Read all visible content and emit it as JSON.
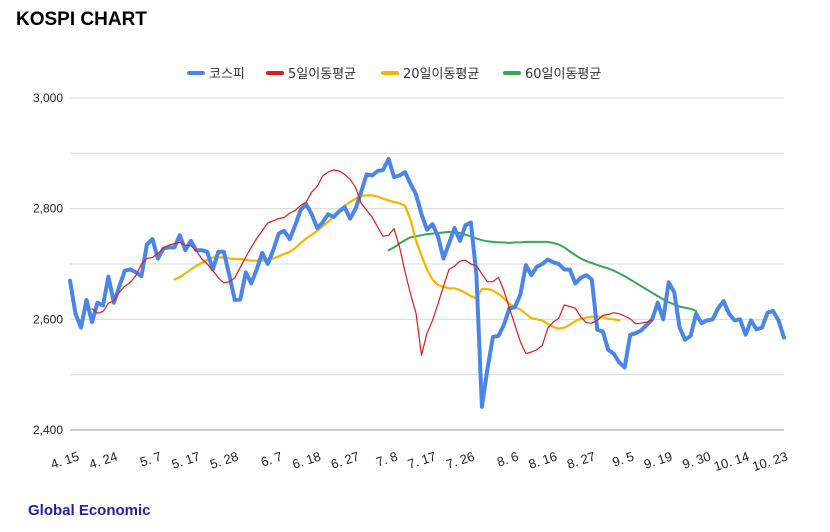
{
  "title": "KOSPI CHART",
  "footer": "Global Economic",
  "colors": {
    "kospi": "#4a86e8",
    "ma5": "#e01b1b",
    "ma20": "#f4b400",
    "ma60": "#34a853",
    "grid": "#d9d9d9"
  },
  "chart_data": {
    "type": "line",
    "title": "",
    "xlabel": "",
    "ylabel": "",
    "ylim": [
      2400,
      3000
    ],
    "yticks": [
      2400,
      2600,
      2800,
      3000
    ],
    "ytick_labels": [
      "2,400",
      "2,600",
      "2,800",
      "3,000"
    ],
    "grid": "horizontal",
    "legend_position": "top",
    "x_tick_labels": [
      {
        "i": 0,
        "label": "4. 15"
      },
      {
        "i": 7,
        "label": "4. 24"
      },
      {
        "i": 15,
        "label": "5. 7"
      },
      {
        "i": 22,
        "label": "5. 17"
      },
      {
        "i": 29,
        "label": "5. 28"
      },
      {
        "i": 37,
        "label": "6. 7"
      },
      {
        "i": 44,
        "label": "6. 18"
      },
      {
        "i": 51,
        "label": "6. 27"
      },
      {
        "i": 58,
        "label": "7. 8"
      },
      {
        "i": 65,
        "label": "7. 17"
      },
      {
        "i": 72,
        "label": "7. 26"
      },
      {
        "i": 80,
        "label": "8. 6"
      },
      {
        "i": 87,
        "label": "8. 16"
      },
      {
        "i": 94,
        "label": "8. 27"
      },
      {
        "i": 101,
        "label": "9. 5"
      },
      {
        "i": 108,
        "label": "9. 19"
      },
      {
        "i": 115,
        "label": "9. 30"
      },
      {
        "i": 122,
        "label": "10. 14"
      },
      {
        "i": 129,
        "label": "10. 23"
      }
    ],
    "series": [
      {
        "name": "코스피",
        "start": 0,
        "values": [
          2670,
          2610,
          2585,
          2635,
          2595,
          2630,
          2625,
          2677,
          2630,
          2660,
          2688,
          2690,
          2685,
          2678,
          2735,
          2745,
          2710,
          2728,
          2730,
          2730,
          2752,
          2725,
          2742,
          2725,
          2725,
          2722,
          2690,
          2722,
          2722,
          2680,
          2635,
          2636,
          2685,
          2665,
          2690,
          2720,
          2700,
          2725,
          2755,
          2760,
          2745,
          2770,
          2798,
          2808,
          2790,
          2765,
          2775,
          2790,
          2785,
          2795,
          2803,
          2782,
          2800,
          2830,
          2862,
          2860,
          2868,
          2870,
          2890,
          2857,
          2860,
          2866,
          2845,
          2826,
          2790,
          2762,
          2772,
          2750,
          2710,
          2737,
          2765,
          2742,
          2770,
          2775,
          2680,
          2442,
          2510,
          2568,
          2570,
          2590,
          2620,
          2622,
          2645,
          2698,
          2680,
          2695,
          2700,
          2708,
          2703,
          2700,
          2690,
          2690,
          2665,
          2675,
          2680,
          2672,
          2581,
          2578,
          2545,
          2538,
          2522,
          2513,
          2572,
          2575,
          2580,
          2590,
          2600,
          2630,
          2600,
          2667,
          2649,
          2585,
          2563,
          2570,
          2610,
          2593,
          2598,
          2600,
          2620,
          2633,
          2610,
          2598,
          2600,
          2572,
          2598,
          2582,
          2585,
          2612,
          2615,
          2598,
          2567
        ]
      },
      {
        "name": "5일이동평균",
        "start": 4,
        "values": [
          2619,
          2611,
          2614,
          2629,
          2634,
          2649,
          2660,
          2667,
          2679,
          2700,
          2710,
          2712,
          2719,
          2729,
          2734,
          2737,
          2739,
          2734,
          2733,
          2724,
          2709,
          2700,
          2688,
          2675,
          2666,
          2668,
          2675,
          2694,
          2713,
          2730,
          2746,
          2760,
          2774,
          2778,
          2782,
          2784,
          2792,
          2797,
          2806,
          2812,
          2830,
          2840,
          2859,
          2866,
          2870,
          2868,
          2862,
          2853,
          2838,
          2810,
          2797,
          2785,
          2767,
          2750,
          2752,
          2764,
          2731,
          2686,
          2646,
          2611,
          2535,
          2575,
          2598,
          2628,
          2660,
          2690,
          2696,
          2705,
          2707,
          2700,
          2697,
          2682,
          2668,
          2668,
          2676,
          2652,
          2620,
          2590,
          2559,
          2538,
          2541,
          2545,
          2553,
          2584,
          2595,
          2602,
          2626,
          2623,
          2620,
          2604,
          2594,
          2593,
          2598,
          2607,
          2609,
          2612,
          2610,
          2606,
          2601,
          2592,
          2593,
          2595,
          2599
        ]
      },
      {
        "name": "20일이동평균",
        "start": 19,
        "values": [
          2672,
          2676,
          2683,
          2690,
          2697,
          2702,
          2708,
          2712,
          2712,
          2712,
          2710,
          2709,
          2709,
          2707,
          2706,
          2706,
          2706,
          2708,
          2710,
          2714,
          2718,
          2722,
          2729,
          2738,
          2746,
          2753,
          2760,
          2768,
          2776,
          2786,
          2796,
          2805,
          2812,
          2818,
          2823,
          2824,
          2824,
          2822,
          2818,
          2815,
          2812,
          2810,
          2805,
          2780,
          2742,
          2715,
          2690,
          2672,
          2662,
          2659,
          2656,
          2656,
          2653,
          2648,
          2642,
          2638,
          2655,
          2655,
          2652,
          2646,
          2638,
          2628,
          2622,
          2618,
          2610,
          2602,
          2600,
          2598,
          2592,
          2586,
          2583,
          2585,
          2590,
          2597,
          2601,
          2603,
          2605,
          2605,
          2604,
          2601,
          2600,
          2598
        ]
      },
      {
        "name": "60일이동평균",
        "start": 58,
        "values": [
          2725,
          2730,
          2737,
          2743,
          2748,
          2750,
          2752,
          2754,
          2755,
          2756,
          2757,
          2758,
          2757,
          2756,
          2753,
          2750,
          2746,
          2743,
          2741,
          2740,
          2739,
          2739,
          2738,
          2739,
          2739,
          2740,
          2740,
          2740,
          2740,
          2740,
          2738,
          2735,
          2730,
          2723,
          2716,
          2710,
          2705,
          2702,
          2698,
          2695,
          2692,
          2688,
          2683,
          2678,
          2672,
          2666,
          2660,
          2654,
          2648,
          2642,
          2636,
          2631,
          2627,
          2623,
          2621,
          2619,
          2615
        ]
      }
    ]
  }
}
